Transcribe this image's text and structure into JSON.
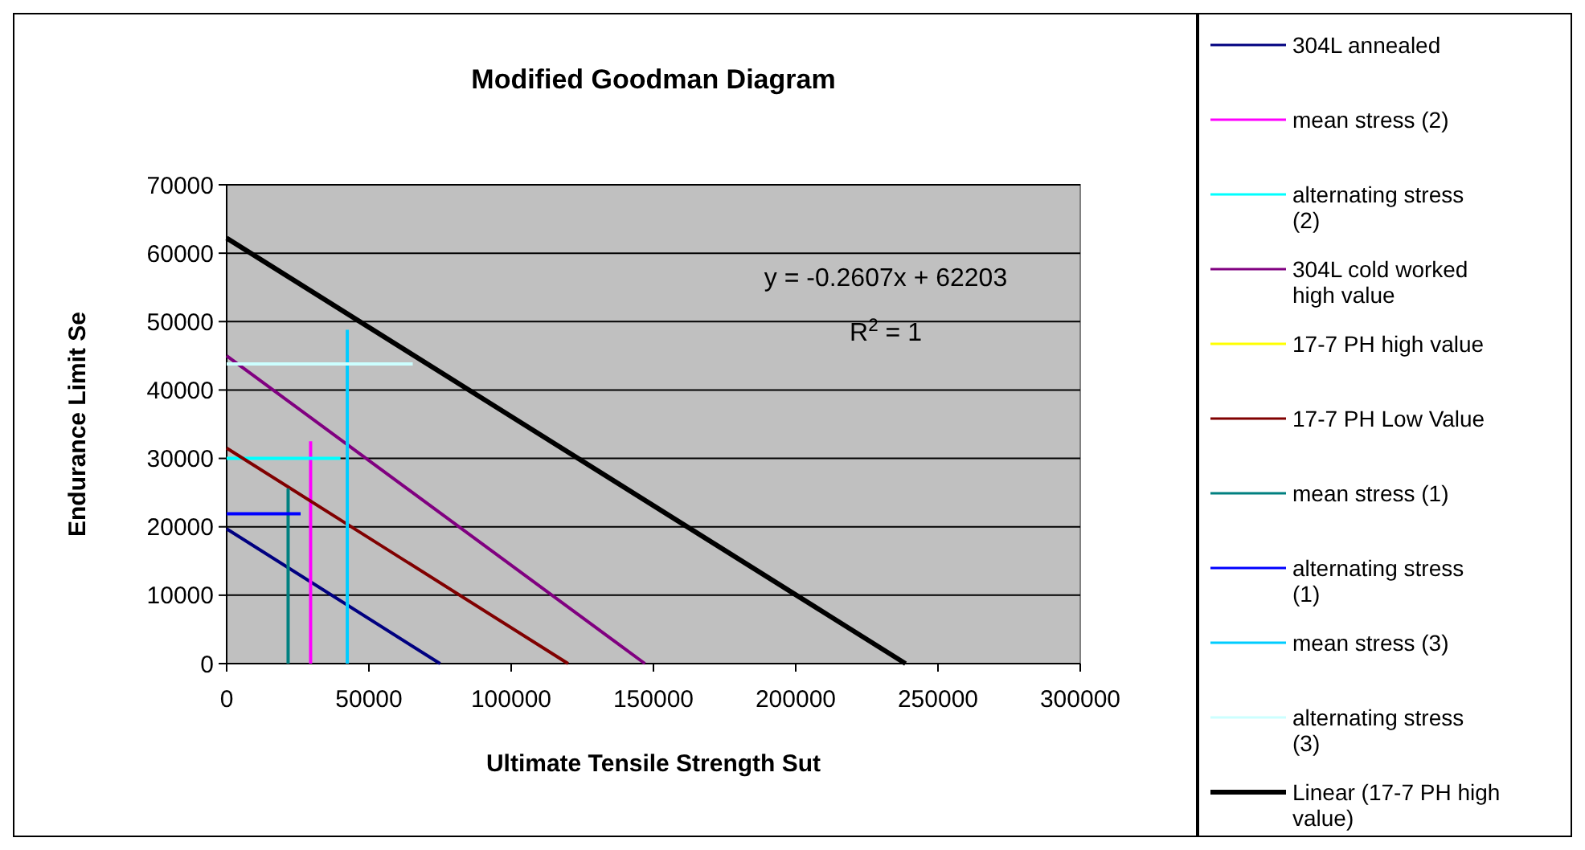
{
  "chart_data": {
    "type": "line",
    "title": "Modified Goodman Diagram",
    "xlabel": "Ultimate Tensile Strength Sut",
    "ylabel": "Endurance Limit Se",
    "xlim": [
      0,
      300000
    ],
    "xticks": [
      0,
      50000,
      100000,
      150000,
      200000,
      250000,
      300000
    ],
    "ylim": [
      0,
      70000
    ],
    "yticks": [
      0,
      10000,
      20000,
      30000,
      40000,
      50000,
      60000,
      70000
    ],
    "grid": "y",
    "legend": "right",
    "line_style": "solid",
    "annotations": [
      "y = -0.2607x + 62203",
      "R$^{2}$ = 1"
    ],
    "series": [
      {
        "name": "304L annealed",
        "color": "#000080",
        "x": [
          0,
          75000
        ],
        "values": [
          19700,
          0
        ]
      },
      {
        "name": "mean stress (2)",
        "color": "#ff00ff",
        "x": [
          29500,
          29500
        ],
        "values": [
          0,
          32500
        ]
      },
      {
        "name": "alternating stress (2)",
        "color": "#00ffff",
        "x": [
          0,
          40000
        ],
        "values": [
          30000,
          30000
        ]
      },
      {
        "name": "304L cold worked high value",
        "color": "#800080",
        "x": [
          0,
          147000
        ],
        "values": [
          45000,
          0
        ]
      },
      {
        "name": "17-7 PH high value",
        "color": "#ffff00",
        "values": [
          null,
          null
        ]
      },
      {
        "name": "17-7 PH Low Value",
        "color": "#800000",
        "x": [
          0,
          120000
        ],
        "values": [
          31500,
          0
        ]
      },
      {
        "name": "mean stress (1)",
        "color": "#008080",
        "x": [
          21600,
          21600
        ],
        "values": [
          0,
          25600
        ]
      },
      {
        "name": "alternating stress (1)",
        "color": "#0000ff",
        "x": [
          0,
          26000
        ],
        "values": [
          21900,
          21900
        ]
      },
      {
        "name": "mean stress (3)",
        "color": "#00ccff",
        "x": [
          42400,
          42400
        ],
        "values": [
          0,
          48800
        ]
      },
      {
        "name": "alternating stress (3)",
        "color": "#ccffff",
        "x": [
          0,
          65400
        ],
        "values": [
          43800,
          43800
        ]
      },
      {
        "name": "Linear (17-7 PH high value)",
        "type": "line",
        "color": "#000000",
        "x": [
          0,
          238600
        ],
        "values": [
          62200,
          0
        ]
      }
    ]
  }
}
